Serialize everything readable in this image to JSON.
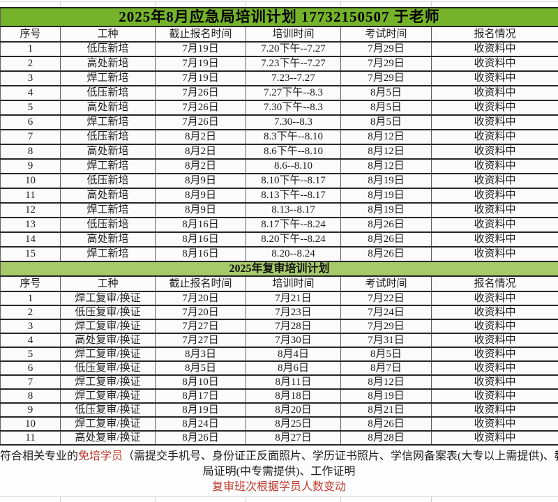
{
  "colors": {
    "title_band_green": "#75b32a",
    "subtitle_band_green": "#a6ca69",
    "highlight_red": "#bf3a2e",
    "grid_line_dark": "#262626",
    "grid_line_mid": "#5f5f5f"
  },
  "table1": {
    "title": "2025年8月应急局培训计划 17732150507 于老师",
    "headers": [
      "序号",
      "工种",
      "截止报名时间",
      "培训时间",
      "考试时间",
      "报名情况"
    ],
    "rows": [
      [
        "1",
        "低压新培",
        "7月19日",
        "7.20下午--7.27",
        "7月29日",
        "收资料中"
      ],
      [
        "2",
        "高处新培",
        "7月19日",
        "7.23下午--7.27",
        "7月29日",
        "收资料中"
      ],
      [
        "3",
        "焊工新培",
        "7月19日",
        "7.23--7.27",
        "7月29日",
        "收资料中"
      ],
      [
        "4",
        "低压新培",
        "7月26日",
        "7.27下午--8.3",
        "8月5日",
        "收资料中"
      ],
      [
        "5",
        "高处新培",
        "7月26日",
        "7.30下午--8.3",
        "8月5日",
        "收资料中"
      ],
      [
        "6",
        "焊工新培",
        "7月26日",
        "7.30--8.3",
        "8月5日",
        "收资料中"
      ],
      [
        "7",
        "低压新培",
        "8月2日",
        "8.3下午--8.10",
        "8月12日",
        "收资料中"
      ],
      [
        "8",
        "高处新培",
        "8月2日",
        "8.6下午--8.10",
        "8月12日",
        "收资料中"
      ],
      [
        "9",
        "焊工新培",
        "8月2日",
        "8.6--8.10",
        "8月12日",
        "收资料中"
      ],
      [
        "10",
        "低压新培",
        "8月9日",
        "8.10下午--8.17",
        "8月19日",
        "收资料中"
      ],
      [
        "11",
        "高处新培",
        "8月9日",
        "8.13下午--8.17",
        "8月19日",
        "收资料中"
      ],
      [
        "12",
        "焊工新培",
        "8月9日",
        "8.13--8.17",
        "8月19日",
        "收资料中"
      ],
      [
        "13",
        "低压新培",
        "8月16日",
        "8.17下午--8.24",
        "8月26日",
        "收资料中"
      ],
      [
        "14",
        "高处新培",
        "8月16日",
        "8.20下午--8.24",
        "8月26日",
        "收资料中"
      ],
      [
        "15",
        "焊工新培",
        "8月16日",
        "8.20--8.24",
        "8月26日",
        "收资料中"
      ]
    ]
  },
  "table2": {
    "title": "2025年复审培训计划",
    "headers": [
      "序号",
      "工种",
      "截止报名时间",
      "培训时间",
      "考试时间",
      "报名情况"
    ],
    "rows": [
      [
        "1",
        "焊工复审/换证",
        "7月20日",
        "7月21日",
        "7月22日",
        "收资料中"
      ],
      [
        "2",
        "低压复审/换证",
        "7月20日",
        "7月23日",
        "7月24日",
        "收资料中"
      ],
      [
        "3",
        "焊工复审/换证",
        "7月27日",
        "7月28日",
        "7月29日",
        "收资料中"
      ],
      [
        "4",
        "高处复审/换证",
        "7月27日",
        "7月30日",
        "7月31日",
        "收资料中"
      ],
      [
        "5",
        "焊工复审/换证",
        "8月3日",
        "8月4日",
        "8月5日",
        "收资料中"
      ],
      [
        "6",
        "低压复审/换证",
        "8月5日",
        "8月6日",
        "8月7日",
        "收资料中"
      ],
      [
        "7",
        "焊工复审/换证",
        "8月10日",
        "8月11日",
        "8月12日",
        "收资料中"
      ],
      [
        "8",
        "焊工复审/换证",
        "8月17日",
        "8月18日",
        "8月19日",
        "收资料中"
      ],
      [
        "9",
        "低压复审/换证",
        "8月19日",
        "8月20日",
        "8月21日",
        "收资料中"
      ],
      [
        "10",
        "焊工复审/换证",
        "8月24日",
        "8月25日",
        "8月26日",
        "收资料中"
      ],
      [
        "11",
        "高处复审/换证",
        "8月26日",
        "8月27日",
        "8月28日",
        "收资料中"
      ]
    ]
  },
  "footer": {
    "line1_prefix": "符合相关专业的",
    "line1_red": "免培学员",
    "line1_suffix": "（需提交手机号、身份证正反面照片、学历证书照片、学信网备案表(大专以上需提供)、教育",
    "line2": "局证明(中专需提供)、工作证明",
    "line3": "复审班次根据学员人数变动"
  }
}
